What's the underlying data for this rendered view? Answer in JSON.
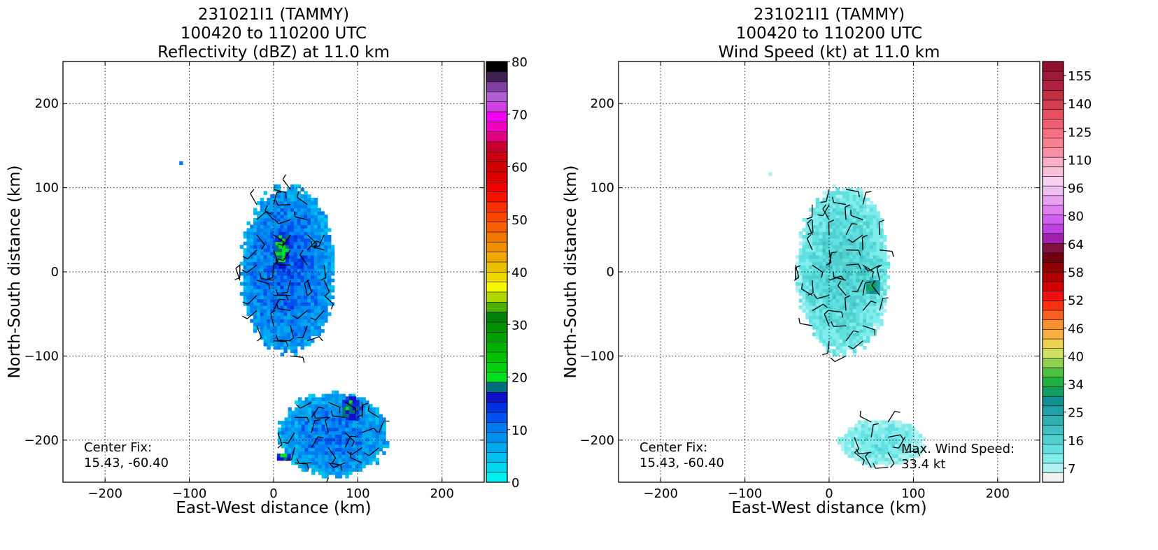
{
  "chart_data": [
    {
      "type": "heatmap",
      "title_lines": [
        "231021I1 (TAMMY)",
        "100420 to 110200 UTC",
        "Reflectivity (dBZ) at 11.0 km"
      ],
      "xlabel": "East-West distance (km)",
      "ylabel": "North-South distance (km)",
      "xlim": [
        -250,
        250
      ],
      "ylim": [
        -250,
        250
      ],
      "xticks": [
        -200,
        -100,
        0,
        100,
        200
      ],
      "yticks": [
        -200,
        -100,
        0,
        100,
        200
      ],
      "grid": true,
      "annotation": "Center Fix:\n15.43, -60.40",
      "colorbar": {
        "min": 0,
        "max": 80,
        "tick_values": [
          0,
          10,
          20,
          30,
          40,
          50,
          60,
          70,
          80
        ],
        "tick_labels": [
          "0",
          "10",
          "20",
          "30",
          "40",
          "50",
          "60",
          "70",
          "80"
        ],
        "colors": [
          "#00f0f0",
          "#00d8f0",
          "#00c0f0",
          "#00a8f0",
          "#0090f0",
          "#0078f0",
          "#0050f0",
          "#0030e0",
          "#1010c8",
          "#007080",
          "#00e020",
          "#00d010",
          "#00c000",
          "#00b000",
          "#00a000",
          "#009000",
          "#00800a",
          "#50b000",
          "#b0d800",
          "#f8f800",
          "#f0d800",
          "#e8c000",
          "#f0a800",
          "#f09000",
          "#f07800",
          "#f86000",
          "#f84800",
          "#f83000",
          "#f81000",
          "#f00000",
          "#e00000",
          "#d00000",
          "#c80010",
          "#c80030",
          "#e00080",
          "#f000c0",
          "#f000f0",
          "#d040e0",
          "#b060d0",
          "#8040a0",
          "#402050",
          "#000000"
        ]
      },
      "series": [
        {
          "name": "Reflectivity",
          "regions": [
            {
              "center_km": [
                15,
                0
              ],
              "extent_km": [
                110,
                200
              ],
              "dominant_dbz": 10
            },
            {
              "center_km": [
                8,
                25
              ],
              "extent_km": [
                20,
                50
              ],
              "dominant_dbz": 18
            },
            {
              "center_km": [
                70,
                -195
              ],
              "extent_km": [
                130,
                100
              ],
              "dominant_dbz": 9
            },
            {
              "center_km": [
                90,
                -165
              ],
              "extent_km": [
                25,
                30
              ],
              "dominant_dbz": 17
            },
            {
              "center_km": [
                10,
                -222
              ],
              "extent_km": [
                20,
                12
              ],
              "dominant_dbz": 17
            },
            {
              "center_km": [
                -113,
                126
              ],
              "extent_km": [
                6,
                5
              ],
              "dominant_dbz": 10
            }
          ]
        }
      ]
    },
    {
      "type": "heatmap",
      "title_lines": [
        "231021I1 (TAMMY)",
        "100420 to 110200 UTC",
        "Wind Speed (kt) at 11.0 km"
      ],
      "xlabel": "East-West distance (km)",
      "ylabel": "North-South distance (km)",
      "xlim": [
        -250,
        250
      ],
      "ylim": [
        -250,
        250
      ],
      "xticks": [
        -200,
        -100,
        0,
        100,
        200
      ],
      "yticks": [
        -200,
        -100,
        0,
        100,
        200
      ],
      "grid": true,
      "annotation": "Center Fix:\n15.43, -60.40",
      "annotation2": "Max. Wind Speed:\n33.4 kt",
      "colorbar": {
        "tick_values": [
          7,
          16,
          25,
          34,
          40,
          46,
          52,
          58,
          64,
          80,
          96,
          110,
          125,
          140,
          155
        ],
        "tick_labels": [
          "7",
          "16",
          "25",
          "34",
          "40",
          "46",
          "52",
          "58",
          "64",
          "80",
          "96",
          "110",
          "125",
          "140",
          "155"
        ],
        "colors": [
          "#f0f0f0",
          "#b0f0f0",
          "#80ecec",
          "#60e0e0",
          "#50d0d0",
          "#40c0c0",
          "#30b0b0",
          "#20a0a8",
          "#109090",
          "#10a060",
          "#20b040",
          "#50c040",
          "#90d050",
          "#d0e060",
          "#f0d050",
          "#f8b040",
          "#f89030",
          "#f86020",
          "#f83010",
          "#f01010",
          "#d00000",
          "#b00000",
          "#900000",
          "#700010",
          "#801040",
          "#a020b0",
          "#c040e0",
          "#d060f0",
          "#e080f0",
          "#e8a0f0",
          "#f0c0f0",
          "#f8d0f0",
          "#f8c0d8",
          "#f8b0c8",
          "#f890a8",
          "#f88090",
          "#f87080",
          "#f06070",
          "#e85060",
          "#d04050",
          "#c03040",
          "#b02040",
          "#a01838",
          "#901030"
        ]
      },
      "series": [
        {
          "name": "Wind Speed",
          "regions": [
            {
              "center_km": [
                15,
                0
              ],
              "extent_km": [
                110,
                200
              ],
              "dominant_kt": 16
            },
            {
              "center_km": [
                50,
                -20
              ],
              "extent_km": [
                20,
                20
              ],
              "dominant_kt": 33.4
            },
            {
              "center_km": [
                60,
                -205
              ],
              "extent_km": [
                100,
                55
              ],
              "dominant_kt": 12
            },
            {
              "center_km": [
                -73,
                113
              ],
              "extent_km": [
                6,
                5
              ],
              "dominant_kt": 10
            }
          ]
        }
      ]
    }
  ]
}
